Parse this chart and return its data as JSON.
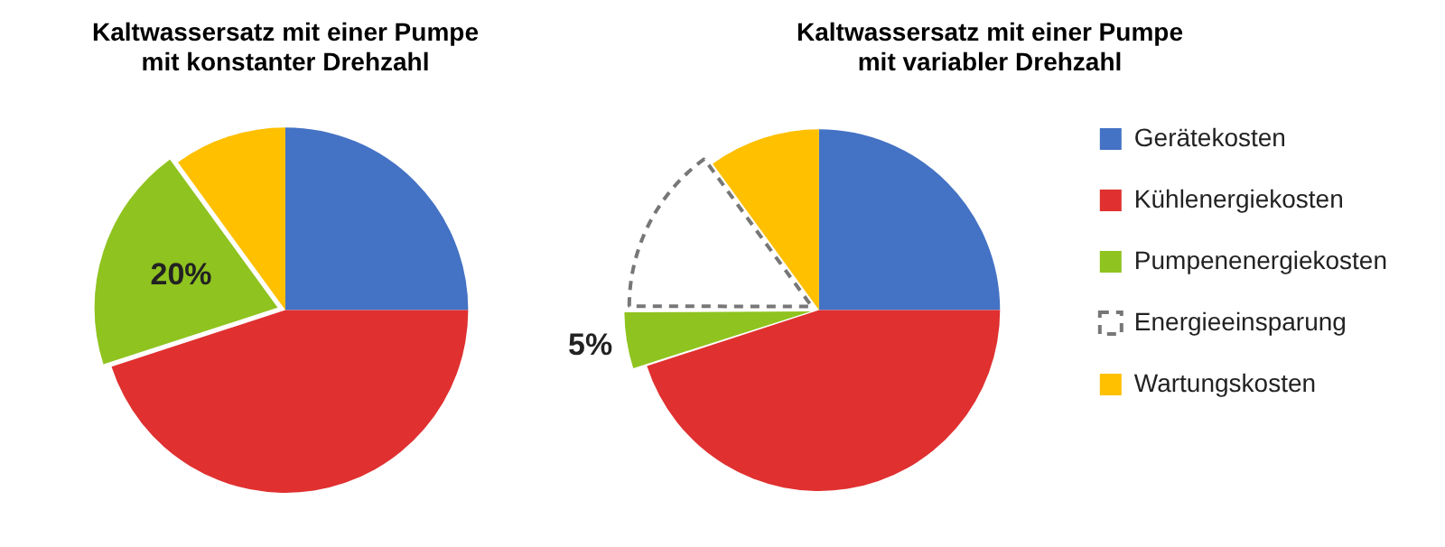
{
  "chart_data": [
    {
      "type": "pie",
      "title": "Kaltwassersatz mit einer Pumpe\nmit konstanter Drehzahl",
      "categories": [
        null,
        null,
        null,
        null
      ],
      "values": [
        25,
        45,
        20,
        10
      ],
      "colors": [
        "#4472c4",
        "#e03030",
        "#8fc31f",
        "#ffc000"
      ],
      "value_labels": [
        null,
        null,
        "20%",
        null
      ],
      "legend": false
    },
    {
      "type": "pie",
      "title": "Kaltwassersatz mit einer Pumpe\nmit variabler Drehzahl",
      "categories": [
        "Gerätekosten",
        "Kühlenergiekosten",
        "Pumpenenergiekosten",
        "Energieeinsparung",
        "Wartungskosten"
      ],
      "values": [
        25,
        45,
        5,
        15,
        10
      ],
      "colors": [
        "#4472c4",
        "#e03030",
        "#8fc31f",
        "#ffffff",
        "#ffc000"
      ],
      "value_labels": [
        null,
        null,
        "5%",
        null,
        null
      ],
      "legend": "right"
    }
  ]
}
